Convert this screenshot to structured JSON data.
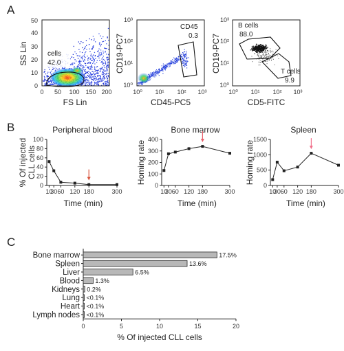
{
  "panel_labels": [
    "A",
    "B",
    "C"
  ],
  "flow": {
    "plot1": {
      "ylabel": "SS Lin",
      "xlabel": "FS Lin",
      "xticks": [
        "0",
        "50",
        "100",
        "150",
        "200"
      ],
      "yticks": [
        "0",
        "10",
        "20",
        "30",
        "40",
        "50"
      ],
      "gate_label": "cells",
      "gate_value": "42.0"
    },
    "plot2": {
      "ylabel": "CD19-PC7",
      "xlabel": "CD45-PC5",
      "yticks": [
        "10⁰",
        "10¹",
        "10²",
        "10³"
      ],
      "xticks": [
        "10⁰",
        "10¹",
        "10²",
        "10³"
      ],
      "gate_label": "CD45",
      "gate_value": "0.3"
    },
    "plot3": {
      "ylabel": "CD19-PC7",
      "xlabel": "CD5-FITC",
      "yticks": [
        "10⁰",
        "10¹",
        "10²",
        "10³"
      ],
      "xticks": [
        "10⁰",
        "10¹",
        "10²",
        "10³"
      ],
      "gate1_label": "B cells",
      "gate1_value": "88.0",
      "gate2_label": "T cells",
      "gate2_value": "9.9"
    }
  },
  "chart_data": [
    {
      "type": "line",
      "title": "Peripheral blood",
      "xlabel": "Time (min)",
      "ylabel_line1": "% Of injected",
      "ylabel_line2": "CLL cells",
      "x": [
        10,
        30,
        60,
        120,
        180,
        300
      ],
      "values": [
        52,
        32,
        7,
        5,
        2,
        2
      ],
      "xlim": [
        0,
        300
      ],
      "ylim": [
        0,
        100
      ],
      "xticks": [
        10,
        30,
        60,
        120,
        180,
        300
      ],
      "yticks": [
        0,
        20,
        40,
        60,
        80,
        100
      ],
      "arrow_at_x": 180,
      "arrow_color": "#d9553e",
      "grid": false
    },
    {
      "type": "line",
      "title": "Bone marrow",
      "xlabel": "Time (min)",
      "ylabel": "Homing rate",
      "x": [
        10,
        30,
        60,
        120,
        180,
        300
      ],
      "values": [
        130,
        275,
        290,
        320,
        340,
        280
      ],
      "xlim": [
        0,
        300
      ],
      "ylim": [
        0,
        400
      ],
      "xticks": [
        10,
        30,
        60,
        120,
        180,
        300
      ],
      "yticks": [
        0,
        100,
        200,
        300,
        400
      ],
      "arrow_at_x": 180,
      "arrow_color": "#e8606b",
      "grid": false
    },
    {
      "type": "line",
      "title": "Spleen",
      "xlabel": "Time (min)",
      "ylabel": "Homing rate",
      "x": [
        10,
        30,
        60,
        120,
        180,
        300
      ],
      "values": [
        190,
        760,
        480,
        600,
        1050,
        660
      ],
      "xlim": [
        0,
        300
      ],
      "ylim": [
        0,
        1500
      ],
      "xticks": [
        10,
        30,
        60,
        120,
        180,
        300
      ],
      "yticks": [
        0,
        500,
        1000,
        1500
      ],
      "arrow_at_x": 180,
      "arrow_color": "#f06f8a",
      "grid": false
    },
    {
      "type": "bar",
      "orientation": "horizontal",
      "categories": [
        "Bone marrow",
        "Spleen",
        "Liver",
        "Blood",
        "Kidneys",
        "Lung",
        "Heart",
        "Lymph nodes"
      ],
      "values": [
        17.5,
        13.6,
        6.5,
        1.3,
        0.2,
        0.05,
        0.05,
        0.05
      ],
      "data_labels": [
        "17.5%",
        "13.6%",
        "6.5%",
        "1.3%",
        "0.2%",
        "<0.1%",
        "<0.1%",
        "<0.1%"
      ],
      "xlabel": "% Of injected CLL cells",
      "xlim": [
        0,
        20
      ],
      "xticks": [
        0,
        5,
        10,
        15,
        20
      ],
      "bar_color": "#b8b8b8",
      "grid": false
    }
  ]
}
